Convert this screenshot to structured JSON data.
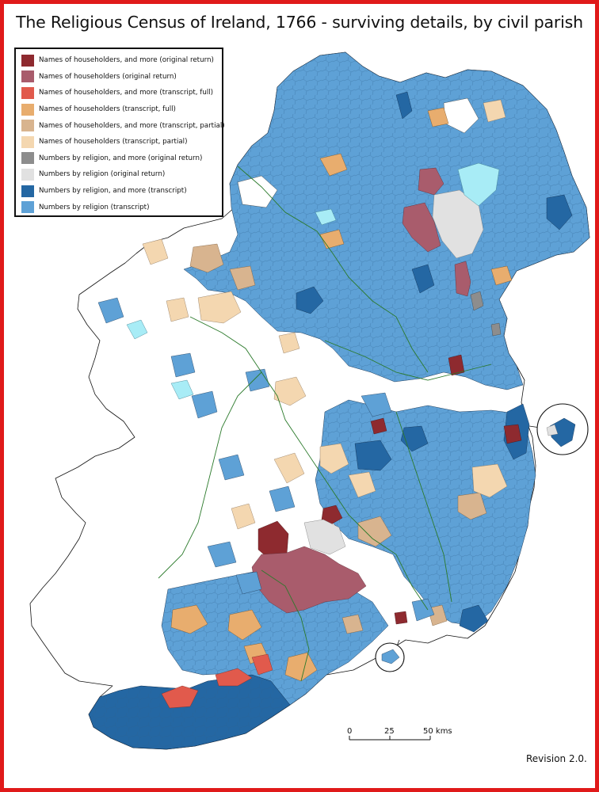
{
  "title": "The Religious Census of Ireland, 1766 - surviving details, by civil parish",
  "legend": [
    {
      "label": "Names of householders, and more (original return)",
      "color": "#8e2a2f"
    },
    {
      "label": "Names of householders (original return)",
      "color": "#a95c6c"
    },
    {
      "label": "Names of householders, and more (transcript, full)",
      "color": "#e15a4c"
    },
    {
      "label": "Names of householders (transcript, full)",
      "color": "#e8ad6e"
    },
    {
      "label": "Names of householders, and more (transcript, partial)",
      "color": "#d8b48f"
    },
    {
      "label": "Names of householders (transcript, partial)",
      "color": "#f4d7b0"
    },
    {
      "label": "Numbers by religion, and more (original return)",
      "color": "#8d8d8d"
    },
    {
      "label": "Numbers by religion (original return)",
      "color": "#e1e1e1"
    },
    {
      "label": "Numbers by religion, and more (transcript)",
      "color": "#2467a3"
    },
    {
      "label": "Numbers by religion (transcript)",
      "color": "#5ea1d6"
    }
  ],
  "scale": {
    "ticks": [
      "0",
      "25",
      "50 kms"
    ]
  },
  "revision": "Revision 2.0."
}
